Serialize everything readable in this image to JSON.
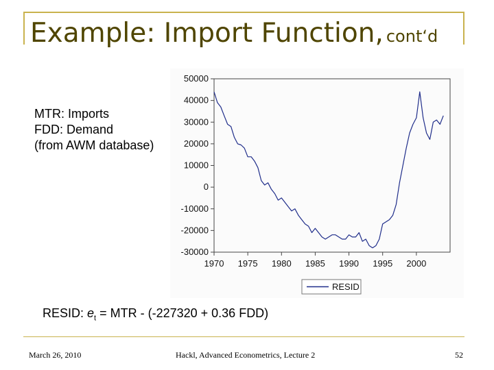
{
  "slide": {
    "title_main": "Example: Import Function,",
    "title_sub": "cont‘d",
    "legend_lines": [
      "MTR: Imports",
      "FDD: Demand",
      "(from AWM database)"
    ],
    "formula_prefix": "RESID: ",
    "formula_e": "e",
    "formula_sub": "t",
    "formula_rest": " = MTR - (-227320 + 0.36 FDD)",
    "footer_date": "March 26, 2010",
    "footer_center": "Hackl, Advanced Econometrics, Lecture 2",
    "page_number": "52"
  },
  "chart_data": {
    "type": "line",
    "title": "",
    "xlabel": "",
    "ylabel": "",
    "xlim": [
      1970,
      2005
    ],
    "ylim": [
      -30000,
      50000
    ],
    "yticks": [
      50000,
      40000,
      30000,
      20000,
      10000,
      0,
      -10000,
      -20000,
      -30000
    ],
    "ytick_labels": [
      "50000",
      "40000",
      "30000",
      "20000",
      "10000",
      "0",
      "-10000",
      "-20000",
      "-30000"
    ],
    "xticks": [
      1970,
      1975,
      1980,
      1985,
      1990,
      1995,
      2000
    ],
    "xtick_labels": [
      "1970",
      "1975",
      "1980",
      "1985",
      "1990",
      "1995",
      "2000"
    ],
    "legend_placement": "bottom-center",
    "line_color": "#1f2d8a",
    "series": [
      {
        "name": "RESID",
        "x": [
          1970.0,
          1970.5,
          1971.0,
          1971.5,
          1972.0,
          1972.5,
          1973.0,
          1973.5,
          1974.0,
          1974.5,
          1975.0,
          1975.5,
          1976.0,
          1976.5,
          1977.0,
          1977.5,
          1978.0,
          1978.5,
          1979.0,
          1979.5,
          1980.0,
          1980.5,
          1981.0,
          1981.5,
          1982.0,
          1982.5,
          1983.0,
          1983.5,
          1984.0,
          1984.5,
          1985.0,
          1985.5,
          1986.0,
          1986.5,
          1987.0,
          1987.5,
          1988.0,
          1988.5,
          1989.0,
          1989.5,
          1990.0,
          1990.5,
          1991.0,
          1991.5,
          1992.0,
          1992.5,
          1993.0,
          1993.5,
          1994.0,
          1994.5,
          1995.0,
          1995.5,
          1996.0,
          1996.5,
          1997.0,
          1997.5,
          1998.0,
          1998.5,
          1999.0,
          1999.5,
          2000.0,
          2000.5,
          2001.0,
          2001.5,
          2002.0,
          2002.5,
          2003.0,
          2003.5,
          2004.0
        ],
        "y": [
          44000,
          39000,
          37000,
          33000,
          29000,
          28000,
          23000,
          20000,
          19500,
          18000,
          14000,
          14000,
          12000,
          9000,
          3000,
          1000,
          2000,
          -1000,
          -3000,
          -6000,
          -5000,
          -7000,
          -9000,
          -11000,
          -10000,
          -13000,
          -15000,
          -17000,
          -18000,
          -21000,
          -19000,
          -21000,
          -23000,
          -24000,
          -23000,
          -22000,
          -22000,
          -23000,
          -24000,
          -24000,
          -22000,
          -23000,
          -23000,
          -21000,
          -25000,
          -24000,
          -27000,
          -28000,
          -27000,
          -24000,
          -17000,
          -16000,
          -15000,
          -13000,
          -8000,
          2000,
          10000,
          18000,
          25000,
          29000,
          32000,
          44000,
          32000,
          25000,
          22000,
          30000,
          31000,
          29000,
          33000
        ]
      }
    ]
  }
}
